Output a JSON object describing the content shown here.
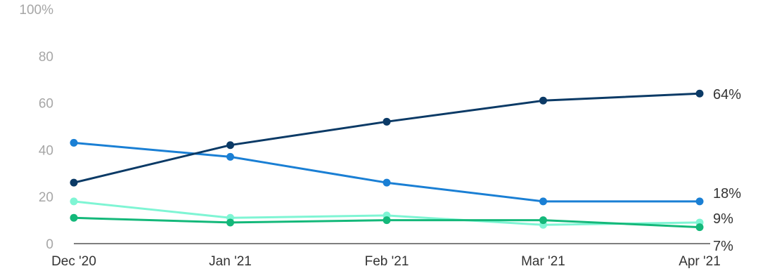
{
  "chart_data": {
    "type": "line",
    "categories": [
      "Dec '20",
      "Jan '21",
      "Feb '21",
      "Mar '21",
      "Apr '21"
    ],
    "y_ticks": [
      "100%",
      "80",
      "60",
      "40",
      "20",
      "0"
    ],
    "ylim": [
      0,
      100
    ],
    "grid": false,
    "series": [
      {
        "color": "#0b3a66",
        "values": [
          26,
          42,
          52,
          61,
          64
        ],
        "end_label": "64%"
      },
      {
        "color": "#1a7fd4",
        "values": [
          43,
          37,
          26,
          18,
          18
        ],
        "end_label": "18%"
      },
      {
        "color": "#7ff5d4",
        "values": [
          18,
          11,
          12,
          8,
          9
        ],
        "end_label": "9%"
      },
      {
        "color": "#14b87a",
        "values": [
          11,
          9,
          10,
          10,
          7
        ],
        "end_label": "7%"
      }
    ]
  }
}
